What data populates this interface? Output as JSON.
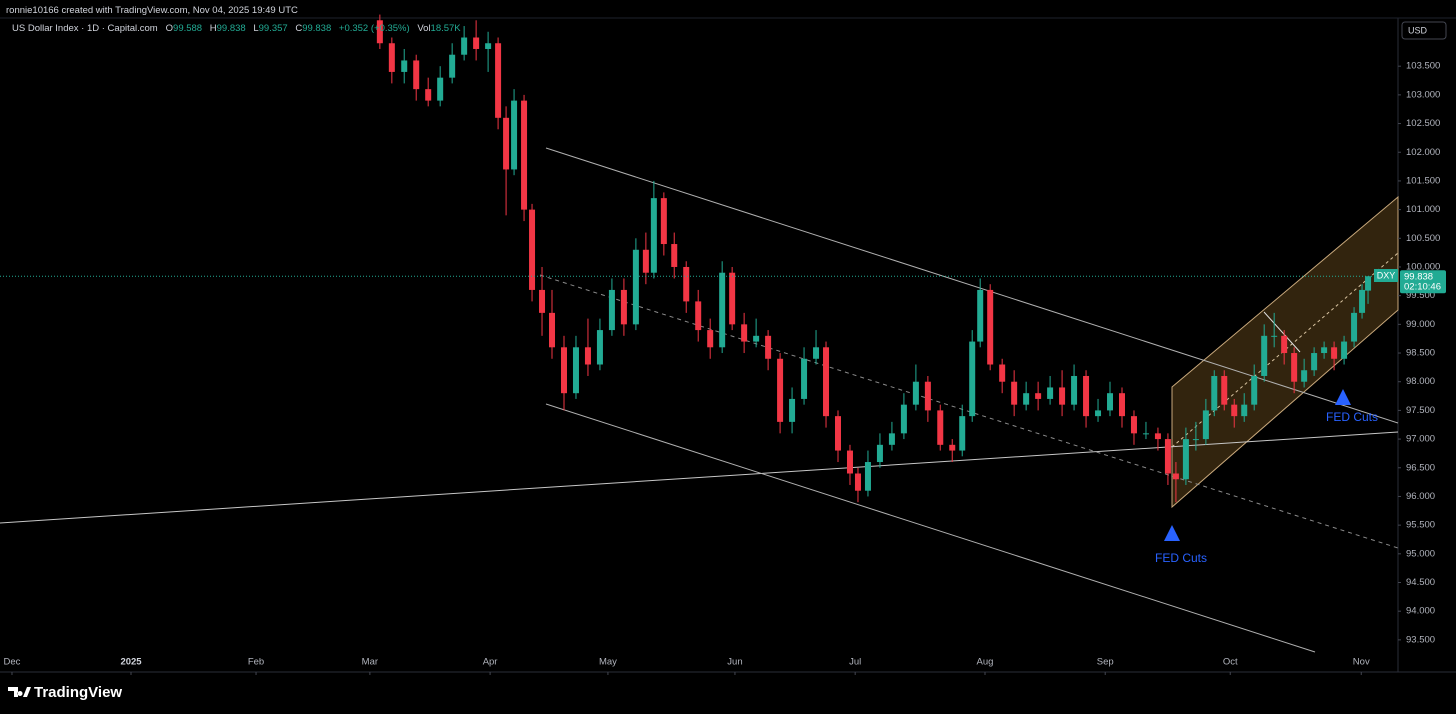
{
  "chart_data": {
    "type": "candlestick",
    "header": "ronnie10166 created with TradingView.com, Nov 04, 2025 19:49 UTC",
    "symbol": "US Dollar Index · 1D · Capital.com",
    "ohlc_labels": [
      "O",
      "H",
      "L",
      "C",
      "Vol"
    ],
    "open": 99.588,
    "high": 99.838,
    "low": 99.357,
    "close": 99.838,
    "change": "+0.352 (+0.35%)",
    "volume": "18.57K",
    "currency": "USD",
    "symbol_tag": "DXY",
    "last_price": 99.838,
    "countdown": "02:10:46",
    "annotations": [
      "FED Cuts",
      "FED Cuts"
    ],
    "brand": "TradingView",
    "up_color": "#22ab94",
    "down_color": "#f23645",
    "xlim": [
      0,
      350
    ],
    "ylim": [
      92.94,
      104.34
    ],
    "grid": false,
    "xticks": [
      {
        "value": 3.0,
        "label": "Dec"
      },
      {
        "value": 32.8,
        "label": "2025"
      },
      {
        "value": 64.1,
        "label": "Feb"
      },
      {
        "value": 92.6,
        "label": "Mar"
      },
      {
        "value": 122.7,
        "label": "Apr"
      },
      {
        "value": 152.2,
        "label": "May"
      },
      {
        "value": 184.0,
        "label": "Jun"
      },
      {
        "value": 214.1,
        "label": "Jul"
      },
      {
        "value": 246.6,
        "label": "Aug"
      },
      {
        "value": 276.7,
        "label": "Sep"
      },
      {
        "value": 308.0,
        "label": "Oct"
      },
      {
        "value": 340.8,
        "label": "Nov"
      }
    ],
    "yticks": [
      {
        "value": 93.5,
        "label": "93.500"
      },
      {
        "value": 94,
        "label": "94.000"
      },
      {
        "value": 94.5,
        "label": "94.500"
      },
      {
        "value": 95,
        "label": "95.000"
      },
      {
        "value": 95.5,
        "label": "95.500"
      },
      {
        "value": 96,
        "label": "96.000"
      },
      {
        "value": 96.5,
        "label": "96.500"
      },
      {
        "value": 97,
        "label": "97.000"
      },
      {
        "value": 97.5,
        "label": "97.500"
      },
      {
        "value": 98,
        "label": "98.000"
      },
      {
        "value": 98.5,
        "label": "98.500"
      },
      {
        "value": 99,
        "label": "99.000"
      },
      {
        "value": 99.5,
        "label": "99.500"
      },
      {
        "value": 100,
        "label": "100.000"
      },
      {
        "value": 100.5,
        "label": "100.500"
      },
      {
        "value": 101,
        "label": "101.000"
      },
      {
        "value": 101.5,
        "label": "101.500"
      },
      {
        "value": 102,
        "label": "102.000"
      },
      {
        "value": 102.5,
        "label": "102.500"
      },
      {
        "value": 103,
        "label": "103.000"
      },
      {
        "value": 103.5,
        "label": "103.500"
      }
    ],
    "x": [
      95.1,
      98.1,
      101.2,
      104.2,
      107.2,
      110.2,
      113.2,
      116.2,
      119.2,
      122.2,
      124.7,
      126.7,
      128.7,
      131.2,
      133.2,
      135.7,
      138.2,
      141.2,
      144.2,
      147.2,
      150.2,
      153.2,
      156.2,
      159.2,
      161.7,
      163.7,
      166.2,
      168.8,
      171.8,
      174.8,
      177.8,
      180.8,
      183.3,
      186.3,
      189.3,
      192.3,
      195.3,
      198.3,
      201.3,
      204.3,
      206.8,
      209.8,
      212.8,
      214.8,
      217.3,
      220.3,
      223.3,
      226.3,
      229.3,
      232.3,
      235.4,
      238.4,
      240.9,
      243.4,
      245.4,
      247.9,
      250.9,
      253.9,
      256.9,
      259.9,
      262.9,
      265.9,
      268.9,
      271.9,
      274.9,
      277.9,
      280.9,
      283.9,
      286.9,
      289.9,
      292.4,
      294.4,
      296.9,
      299.4,
      301.9,
      304.0,
      306.5,
      309.0,
      311.5,
      314.0,
      316.5,
      319.0,
      321.5,
      324.0,
      326.5,
      329.0,
      331.5,
      334.0,
      336.5,
      339.0,
      341.0,
      342.5
    ],
    "ohlc": [
      [
        104.3,
        104.4,
        103.8,
        103.9
      ],
      [
        103.9,
        104.0,
        103.2,
        103.4
      ],
      [
        103.4,
        103.8,
        103.2,
        103.6
      ],
      [
        103.6,
        103.7,
        102.9,
        103.1
      ],
      [
        103.1,
        103.3,
        102.8,
        102.9
      ],
      [
        102.9,
        103.5,
        102.8,
        103.3
      ],
      [
        103.3,
        103.9,
        103.2,
        103.7
      ],
      [
        103.7,
        104.2,
        103.6,
        104.0
      ],
      [
        104.0,
        104.3,
        103.6,
        103.8
      ],
      [
        103.8,
        104.1,
        103.4,
        103.9
      ],
      [
        103.9,
        104.0,
        102.4,
        102.6
      ],
      [
        102.6,
        102.8,
        100.9,
        101.7
      ],
      [
        101.7,
        103.1,
        101.6,
        102.9
      ],
      [
        102.9,
        103.0,
        100.8,
        101.0
      ],
      [
        101.0,
        101.1,
        99.4,
        99.6
      ],
      [
        99.6,
        100.0,
        98.8,
        99.2
      ],
      [
        99.2,
        99.6,
        98.4,
        98.6
      ],
      [
        98.6,
        98.8,
        97.5,
        97.8
      ],
      [
        97.8,
        98.8,
        97.7,
        98.6
      ],
      [
        98.6,
        99.1,
        98.1,
        98.3
      ],
      [
        98.3,
        99.1,
        98.2,
        98.9
      ],
      [
        98.9,
        99.8,
        98.8,
        99.6
      ],
      [
        99.6,
        99.8,
        98.8,
        99.0
      ],
      [
        99.0,
        100.5,
        98.9,
        100.3
      ],
      [
        100.3,
        100.6,
        99.7,
        99.9
      ],
      [
        99.9,
        101.5,
        99.8,
        101.2
      ],
      [
        101.2,
        101.3,
        100.2,
        100.4
      ],
      [
        100.4,
        100.6,
        99.8,
        100.0
      ],
      [
        100.0,
        100.1,
        99.2,
        99.4
      ],
      [
        99.4,
        99.6,
        98.7,
        98.9
      ],
      [
        98.9,
        99.1,
        98.4,
        98.6
      ],
      [
        98.6,
        100.1,
        98.5,
        99.9
      ],
      [
        99.9,
        100.0,
        98.9,
        99.0
      ],
      [
        99.0,
        99.2,
        98.5,
        98.7
      ],
      [
        98.7,
        99.1,
        98.6,
        98.8
      ],
      [
        98.8,
        98.9,
        98.2,
        98.4
      ],
      [
        98.4,
        98.5,
        97.1,
        97.3
      ],
      [
        97.3,
        97.9,
        97.1,
        97.7
      ],
      [
        97.7,
        98.6,
        97.6,
        98.4
      ],
      [
        98.4,
        98.9,
        98.3,
        98.6
      ],
      [
        98.6,
        98.7,
        97.2,
        97.4
      ],
      [
        97.4,
        97.5,
        96.6,
        96.8
      ],
      [
        96.8,
        96.9,
        96.2,
        96.4
      ],
      [
        96.4,
        96.5,
        95.9,
        96.1
      ],
      [
        96.1,
        96.8,
        96.0,
        96.6
      ],
      [
        96.6,
        97.1,
        96.5,
        96.9
      ],
      [
        96.9,
        97.3,
        96.8,
        97.1
      ],
      [
        97.1,
        97.8,
        97.0,
        97.6
      ],
      [
        97.6,
        98.3,
        97.5,
        98.0
      ],
      [
        98.0,
        98.1,
        97.3,
        97.5
      ],
      [
        97.5,
        97.6,
        96.8,
        96.9
      ],
      [
        96.9,
        97.0,
        96.6,
        96.8
      ],
      [
        96.8,
        97.6,
        96.7,
        97.4
      ],
      [
        97.4,
        98.9,
        97.3,
        98.7
      ],
      [
        98.7,
        99.8,
        98.6,
        99.6
      ],
      [
        99.6,
        99.7,
        98.2,
        98.3
      ],
      [
        98.3,
        98.4,
        97.8,
        98.0
      ],
      [
        98.0,
        98.2,
        97.4,
        97.6
      ],
      [
        97.6,
        98.0,
        97.5,
        97.8
      ],
      [
        97.8,
        98.0,
        97.5,
        97.7
      ],
      [
        97.7,
        98.1,
        97.6,
        97.9
      ],
      [
        97.9,
        98.2,
        97.4,
        97.6
      ],
      [
        97.6,
        98.3,
        97.5,
        98.1
      ],
      [
        98.1,
        98.2,
        97.2,
        97.4
      ],
      [
        97.4,
        97.7,
        97.3,
        97.5
      ],
      [
        97.5,
        98.0,
        97.4,
        97.8
      ],
      [
        97.8,
        97.9,
        97.2,
        97.4
      ],
      [
        97.4,
        97.5,
        96.9,
        97.1
      ],
      [
        97.1,
        97.3,
        97.0,
        97.1
      ],
      [
        97.1,
        97.2,
        96.8,
        97.0
      ],
      [
        97.0,
        97.1,
        96.2,
        96.4
      ],
      [
        96.4,
        96.6,
        95.9,
        96.3
      ],
      [
        96.3,
        97.2,
        96.2,
        97.0
      ],
      [
        97.0,
        97.3,
        96.8,
        97.0
      ],
      [
        97.0,
        97.7,
        96.9,
        97.5
      ],
      [
        97.5,
        98.2,
        97.4,
        98.1
      ],
      [
        98.1,
        98.2,
        97.5,
        97.6
      ],
      [
        97.6,
        97.7,
        97.2,
        97.4
      ],
      [
        97.4,
        97.8,
        97.3,
        97.6
      ],
      [
        97.6,
        98.3,
        97.5,
        98.1
      ],
      [
        98.1,
        99.0,
        98.0,
        98.8
      ],
      [
        98.8,
        99.2,
        98.6,
        98.8
      ],
      [
        98.8,
        98.9,
        98.3,
        98.5
      ],
      [
        98.5,
        98.6,
        97.8,
        98.0
      ],
      [
        98.0,
        98.4,
        97.9,
        98.2
      ],
      [
        98.2,
        98.6,
        98.1,
        98.5
      ],
      [
        98.5,
        98.7,
        98.4,
        98.6
      ],
      [
        98.6,
        98.7,
        98.2,
        98.4
      ],
      [
        98.4,
        98.8,
        98.3,
        98.7
      ],
      [
        98.7,
        99.3,
        98.6,
        99.2
      ],
      [
        99.2,
        99.7,
        99.1,
        99.6
      ],
      [
        99.588,
        99.838,
        99.357,
        99.838
      ]
    ]
  }
}
